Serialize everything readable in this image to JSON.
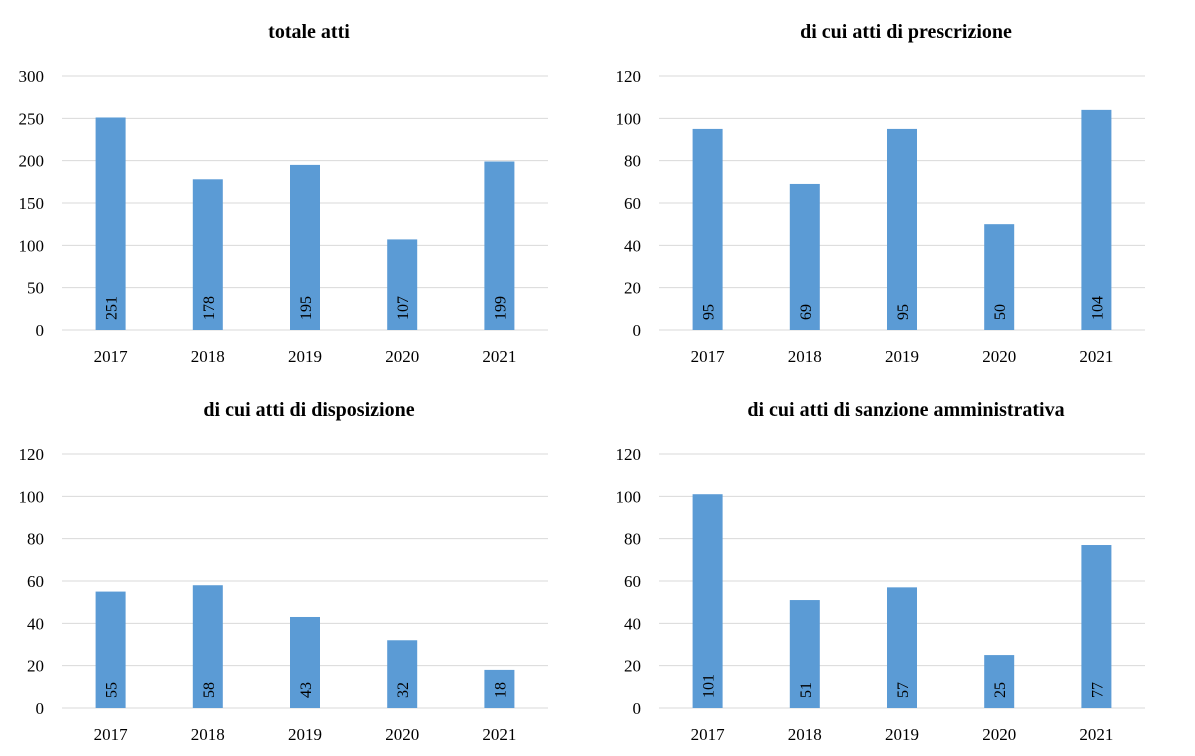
{
  "chart_data": [
    {
      "type": "bar",
      "title": "totale atti",
      "categories": [
        "2017",
        "2018",
        "2019",
        "2020",
        "2021"
      ],
      "values": [
        251,
        178,
        195,
        107,
        199
      ],
      "ylim": [
        0,
        300
      ],
      "yticks": [
        0,
        50,
        100,
        150,
        200,
        250,
        300
      ],
      "grid": true,
      "bar_color": "#5b9bd5"
    },
    {
      "type": "bar",
      "title": "di cui atti di prescrizione",
      "categories": [
        "2017",
        "2018",
        "2019",
        "2020",
        "2021"
      ],
      "values": [
        95,
        69,
        95,
        50,
        104
      ],
      "ylim": [
        0,
        120
      ],
      "yticks": [
        0,
        20,
        40,
        60,
        80,
        100,
        120
      ],
      "grid": true,
      "bar_color": "#5b9bd5"
    },
    {
      "type": "bar",
      "title": "di cui atti di disposizione",
      "categories": [
        "2017",
        "2018",
        "2019",
        "2020",
        "2021"
      ],
      "values": [
        55,
        58,
        43,
        32,
        18
      ],
      "ylim": [
        0,
        120
      ],
      "yticks": [
        0,
        20,
        40,
        60,
        80,
        100,
        120
      ],
      "grid": true,
      "bar_color": "#5b9bd5"
    },
    {
      "type": "bar",
      "title": "di cui atti di sanzione amministrativa",
      "categories": [
        "2017",
        "2018",
        "2019",
        "2020",
        "2021"
      ],
      "values": [
        101,
        51,
        57,
        25,
        77
      ],
      "ylim": [
        0,
        120
      ],
      "yticks": [
        0,
        20,
        40,
        60,
        80,
        100,
        120
      ],
      "grid": true,
      "bar_color": "#5b9bd5"
    }
  ]
}
